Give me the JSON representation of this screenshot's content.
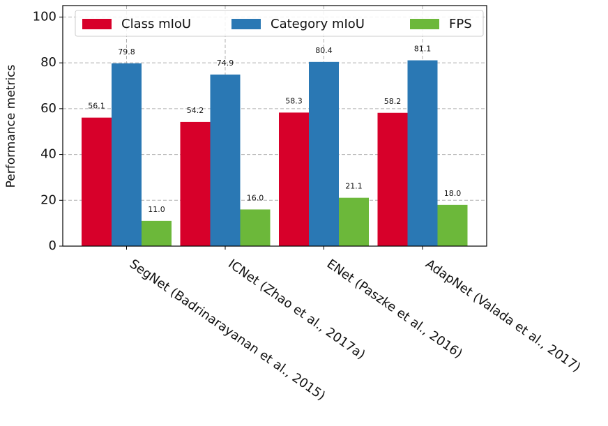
{
  "chart_data": {
    "type": "bar",
    "y_label": "Performance metrics",
    "categories": [
      "SegNet (Badrinarayanan et al., 2015)",
      "ICNet (Zhao et al., 2017a)",
      "ENet (Paszke et al., 2016)",
      "AdapNet (Valada et al., 2017)"
    ],
    "series": [
      {
        "name": "Class mIoU",
        "color": "#d7002a",
        "values": [
          56.1,
          54.2,
          58.3,
          58.2
        ]
      },
      {
        "name": "Category mIoU",
        "color": "#2a78b4",
        "values": [
          79.8,
          74.9,
          80.4,
          81.1
        ]
      },
      {
        "name": "FPS",
        "color": "#6cb83a",
        "values": [
          11.0,
          16.0,
          21.1,
          18.0
        ],
        "value_labels": [
          "11.0",
          "16.0",
          "21.1",
          "18.0"
        ]
      }
    ],
    "ylim": [
      0,
      105
    ],
    "yticks": [
      0,
      20,
      40,
      60,
      80,
      100
    ],
    "grid": true,
    "legend": "top"
  }
}
